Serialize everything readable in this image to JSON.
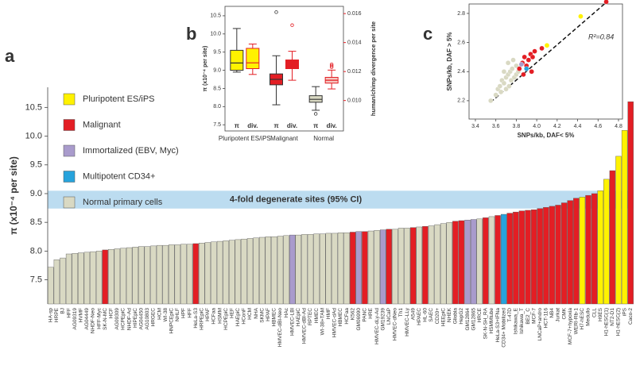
{
  "chart_data": [
    {
      "type": "bar",
      "panel": "a",
      "ylabel": "π (x10⁻⁴ per site)",
      "band": {
        "label": "4-fold degenerate sites (95% CI)",
        "range": [
          8.74,
          9.05
        ],
        "color": "#bcdcf0"
      },
      "legend": [
        {
          "name": "Pluripotent ES/iPS",
          "color": "#fff200"
        },
        {
          "name": "Malignant",
          "color": "#e31e24"
        },
        {
          "name": "Immortalized (EBV, Myc)",
          "color": "#a99bcc"
        },
        {
          "name": "Multipotent CD34+",
          "color": "#27a3dc"
        },
        {
          "name": "Normal primary cells",
          "color": "#d9d9c3"
        }
      ],
      "ylim": [
        7.08,
        10.85
      ],
      "yticks": [
        7.5,
        {
          "value": 8,
          "label": "8.0"
        },
        8.5,
        {
          "value": 9,
          "label": "9.0"
        },
        9.5,
        {
          "value": 10,
          "label": "10.0"
        },
        10.5
      ],
      "categories": [
        "HA-sp",
        "HRPE",
        "BJ",
        "HFF",
        "AG09319",
        "HVMF",
        "AG04449",
        "NHDF-Neo",
        "HFF-Myc",
        "SK-N-MC",
        "HCF",
        "AG09309",
        "HCPEpiC",
        "NHDF-Ad",
        "HIPEpiC",
        "AG04450",
        "AG10803",
        "HRGEC",
        "HCM",
        "WI-38",
        "HNPCEpiC",
        "NHLF",
        "HPF",
        "HFF",
        "HeLa-S3",
        "HRPEpiC",
        "HPAF",
        "HCFaa",
        "HSMM",
        "HCPEpiC",
        "HEF",
        "HAEpiC",
        "HConF",
        "HCM",
        "NHA",
        "SKMC",
        "HPAF",
        "HBMEC",
        "HMVEC-dBl-Neo",
        "HAc",
        "HMVEC-LBl",
        "HAEpiC",
        "HMVEC-dBl-Ad",
        "RPTEC",
        "HMEC",
        "WI-38+TAM",
        "HMF",
        "HMVEC-dAd",
        "HBMEC",
        "HCFaa",
        "K562",
        "GM06990",
        "PANC",
        "HRE",
        "HMVEC-dLy-Ad",
        "GM19239",
        "LNCaP",
        "HMVEC-dNeo",
        "Th1",
        "HMVEC-LLy",
        "A549",
        "HPAEC",
        "HL-60",
        "SAEC",
        "CD20+",
        "HEEpiC",
        "NHEK",
        "Gliobla",
        "HepG2",
        "GM12864",
        "GM12865",
        "HRCE",
        "SK-N-SH_RA",
        "HSMMtube",
        "HeLa-S3+IFNa",
        "CD34+ Mobilized",
        "T-47D",
        "Ishikawa_E",
        "Ishikawa_T",
        "BE2_C",
        "MCF-7",
        "LNCaP+andro",
        "HCT-116",
        "NB4",
        "Jurkat",
        "CMK",
        "MCF-7+hypoxia",
        "WERI-Rb-1",
        "H7-hESC",
        "Medullo",
        "CLL",
        "H9ES",
        "H1-hESC(1)",
        "NT2-D1",
        "H1-hESC(2)",
        "iPS",
        "Caco-2"
      ],
      "values": [
        7.72,
        7.85,
        7.88,
        7.95,
        7.96,
        7.97,
        7.98,
        7.99,
        8.0,
        8.02,
        8.03,
        8.04,
        8.05,
        8.06,
        8.07,
        8.08,
        8.08,
        8.09,
        8.1,
        8.1,
        8.11,
        8.11,
        8.12,
        8.12,
        8.13,
        8.14,
        8.15,
        8.16,
        8.17,
        8.18,
        8.19,
        8.2,
        8.21,
        8.22,
        8.23,
        8.24,
        8.25,
        8.25,
        8.26,
        8.27,
        8.28,
        8.28,
        8.29,
        8.29,
        8.3,
        8.3,
        8.31,
        8.31,
        8.32,
        8.32,
        8.33,
        8.34,
        8.34,
        8.35,
        8.36,
        8.37,
        8.38,
        8.38,
        8.4,
        8.4,
        8.41,
        8.42,
        8.43,
        8.44,
        8.46,
        8.48,
        8.5,
        8.52,
        8.53,
        8.54,
        8.55,
        8.56,
        8.58,
        8.6,
        8.62,
        8.64,
        8.66,
        8.68,
        8.7,
        8.71,
        8.72,
        8.74,
        8.76,
        8.78,
        8.8,
        8.84,
        8.88,
        8.92,
        8.94,
        8.97,
        9.0,
        9.05,
        9.25,
        9.4,
        9.65,
        10.1,
        10.6
      ],
      "colors": [
        "#d9d9c3",
        "#d9d9c3",
        "#d9d9c3",
        "#d9d9c3",
        "#d9d9c3",
        "#d9d9c3",
        "#d9d9c3",
        "#d9d9c3",
        "#d9d9c3",
        "#e31e24",
        "#d9d9c3",
        "#d9d9c3",
        "#d9d9c3",
        "#d9d9c3",
        "#d9d9c3",
        "#d9d9c3",
        "#d9d9c3",
        "#d9d9c3",
        "#d9d9c3",
        "#d9d9c3",
        "#d9d9c3",
        "#d9d9c3",
        "#d9d9c3",
        "#d9d9c3",
        "#e31e24",
        "#d9d9c3",
        "#d9d9c3",
        "#d9d9c3",
        "#d9d9c3",
        "#d9d9c3",
        "#d9d9c3",
        "#d9d9c3",
        "#d9d9c3",
        "#d9d9c3",
        "#d9d9c3",
        "#d9d9c3",
        "#d9d9c3",
        "#d9d9c3",
        "#d9d9c3",
        "#d9d9c3",
        "#a99bcc",
        "#d9d9c3",
        "#d9d9c3",
        "#d9d9c3",
        "#d9d9c3",
        "#d9d9c3",
        "#d9d9c3",
        "#d9d9c3",
        "#d9d9c3",
        "#d9d9c3",
        "#e31e24",
        "#a99bcc",
        "#e31e24",
        "#d9d9c3",
        "#d9d9c3",
        "#a99bcc",
        "#e31e24",
        "#d9d9c3",
        "#d9d9c3",
        "#d9d9c3",
        "#e31e24",
        "#d9d9c3",
        "#e31e24",
        "#d9d9c3",
        "#d9d9c3",
        "#d9d9c3",
        "#d9d9c3",
        "#e31e24",
        "#e31e24",
        "#a99bcc",
        "#a99bcc",
        "#d9d9c3",
        "#e31e24",
        "#d9d9c3",
        "#e31e24",
        "#27a3dc",
        "#e31e24",
        "#e31e24",
        "#e31e24",
        "#e31e24",
        "#e31e24",
        "#e31e24",
        "#e31e24",
        "#e31e24",
        "#e31e24",
        "#e31e24",
        "#e31e24",
        "#e31e24",
        "#fff200",
        "#e31e24",
        "#e31e24",
        "#fff200",
        "#fff200",
        "#e31e24",
        "#fff200",
        "#fff200",
        "#e31e24"
      ]
    },
    {
      "type": "box",
      "panel": "b",
      "ylabel": "π (x10⁻⁴ per site)",
      "y2label": "human/chimp divergence per site",
      "ylim": [
        7.33,
        10.76
      ],
      "yticks": [
        7.5,
        {
          "value": 8,
          "label": "8.0"
        },
        8.5,
        {
          "value": 9,
          "label": "9.0"
        },
        9.5,
        {
          "value": 10,
          "label": "10.0"
        },
        10.5
      ],
      "y2lim": [
        0.0079,
        0.0165
      ],
      "y2ticks": [
        {
          "value": 0.01,
          "label": "0.010"
        },
        {
          "value": 0.012,
          "label": "0.012"
        },
        {
          "value": 0.014,
          "label": "0.014"
        },
        {
          "value": 0.016,
          "label": "0.016"
        }
      ],
      "groups": [
        "Pluripotent ES/iPS",
        "Malignant",
        "Normal"
      ],
      "boxes": [
        {
          "label": "π",
          "group": "Pluripotent ES/iPS",
          "color": "#fff200",
          "stroke": "#333",
          "min": 8.95,
          "q1": 9.0,
          "median": 9.2,
          "q3": 9.55,
          "max": 10.15,
          "outliers": []
        },
        {
          "label": "div.",
          "axis": "y2",
          "group": "Pluripotent ES/iPS",
          "color": "#fff200",
          "stroke": "#e31e24",
          "min": 0.0118,
          "q1": 0.0122,
          "median": 0.0126,
          "q3": 0.0136,
          "max": 0.0139,
          "outliers": []
        },
        {
          "label": "π",
          "group": "Malignant",
          "color": "#e31e24",
          "stroke": "#333",
          "min": 8.05,
          "q1": 8.6,
          "median": 8.75,
          "q3": 8.9,
          "max": 9.4,
          "outliers": [
            10.6
          ]
        },
        {
          "label": "div.",
          "axis": "y2",
          "group": "Malignant",
          "color": "#e31e24",
          "stroke": "#e31e24",
          "min": 0.0114,
          "q1": 0.0122,
          "median": 0.0125,
          "q3": 0.0128,
          "max": 0.0134,
          "outliers": [
            0.0152
          ]
        },
        {
          "label": "π",
          "group": "Normal",
          "color": "#d9d9c3",
          "stroke": "#333",
          "min": 7.9,
          "q1": 8.12,
          "median": 8.2,
          "q3": 8.3,
          "max": 8.55,
          "outliers": [
            7.8
          ]
        },
        {
          "label": "div.",
          "axis": "y2",
          "group": "Normal",
          "color": "#f4c6c0",
          "stroke": "#e31e24",
          "min": 0.0108,
          "q1": 0.0112,
          "median": 0.0114,
          "q3": 0.0116,
          "max": 0.0121,
          "outliers": [
            0.0123,
            0.0124,
            0.0125
          ]
        }
      ]
    },
    {
      "type": "scatter",
      "panel": "c",
      "xlabel": "SNPs/kb, DAF< 5%",
      "ylabel": "SNPs/kb, DAF > 5%",
      "annotation": "R²=0.84",
      "xlim": [
        3.338,
        4.839
      ],
      "xticks": [
        3.4,
        3.6,
        3.8,
        {
          "value": 4,
          "label": "4.0"
        },
        4.2,
        4.4,
        4.6,
        4.8
      ],
      "ylim": [
        2.074,
        2.865
      ],
      "yticks": [
        2.2,
        2.4,
        2.6,
        2.8
      ],
      "trend_line": {
        "x": [
          3.55,
          4.72
        ],
        "y": [
          2.19,
          2.9
        ]
      },
      "x": [
        3.55,
        3.6,
        3.62,
        3.64,
        3.65,
        3.66,
        3.68,
        3.7,
        3.7,
        3.72,
        3.73,
        3.74,
        3.75,
        3.76,
        3.78,
        3.8,
        3.8,
        3.82,
        3.68,
        3.72,
        3.77,
        3.83,
        3.86,
        3.88,
        3.9,
        3.92,
        3.94,
        3.96,
        3.98,
        3.9,
        3.85,
        4.05,
        4.1,
        4.43,
        4.68,
        3.95,
        3.87
      ],
      "y": [
        2.2,
        2.24,
        2.28,
        2.3,
        2.26,
        2.34,
        2.32,
        2.36,
        2.28,
        2.38,
        2.3,
        2.4,
        2.34,
        2.42,
        2.36,
        2.44,
        2.38,
        2.4,
        2.4,
        2.46,
        2.48,
        2.42,
        2.46,
        2.5,
        2.44,
        2.48,
        2.52,
        2.5,
        2.54,
        2.42,
        2.45,
        2.56,
        2.58,
        2.78,
        2.88,
        2.4,
        2.38
      ],
      "colors": [
        "#d9d9c3",
        "#d9d9c3",
        "#d9d9c3",
        "#d9d9c3",
        "#d9d9c3",
        "#d9d9c3",
        "#d9d9c3",
        "#d9d9c3",
        "#d9d9c3",
        "#d9d9c3",
        "#d9d9c3",
        "#d9d9c3",
        "#d9d9c3",
        "#d9d9c3",
        "#d9d9c3",
        "#d9d9c3",
        "#d9d9c3",
        "#d9d9c3",
        "#d9d9c3",
        "#d9d9c3",
        "#d9d9c3",
        "#e31e24",
        "#e31e24",
        "#e31e24",
        "#e31e24",
        "#e31e24",
        "#e31e24",
        "#e31e24",
        "#e31e24",
        "#27a3dc",
        "#a99bcc",
        "#e31e24",
        "#fff200",
        "#fff200",
        "#e31e24",
        "#e31e24",
        "#e31e24"
      ]
    }
  ]
}
